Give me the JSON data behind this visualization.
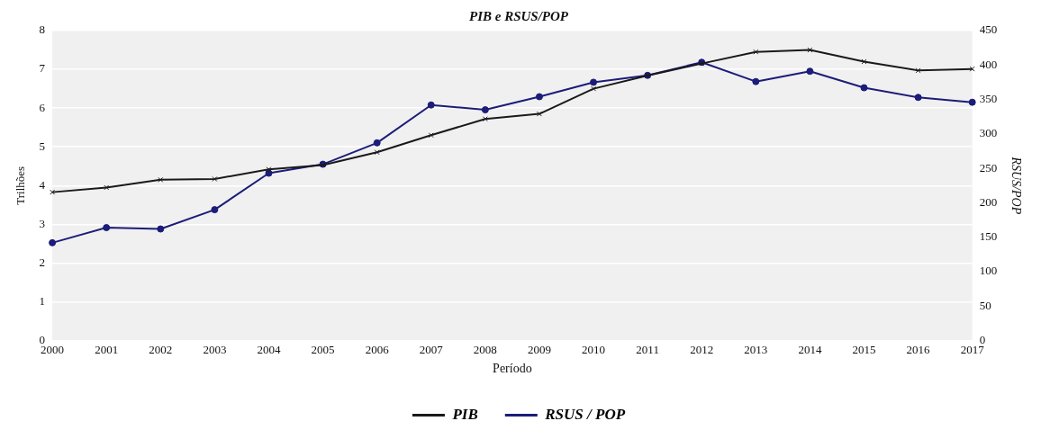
{
  "chart_data": {
    "type": "line",
    "title": "PIB e RSUS/POP",
    "xlabel": "Período",
    "ylabel": "Trilhões",
    "y2label": "RSUS/POP",
    "categories": [
      "2000",
      "2001",
      "2002",
      "2003",
      "2004",
      "2005",
      "2006",
      "2007",
      "2008",
      "2009",
      "2010",
      "2011",
      "2012",
      "2013",
      "2014",
      "2015",
      "2016",
      "2017"
    ],
    "series": [
      {
        "name": "PIB",
        "color": "#1a1a1a",
        "marker": "cross",
        "values": [
          3.83,
          3.95,
          4.15,
          4.17,
          4.42,
          4.53,
          4.86,
          5.3,
          5.72,
          5.85,
          6.5,
          6.84,
          7.15,
          7.45,
          7.5,
          7.2,
          6.97,
          7.01
        ]
      },
      {
        "name": "RSUS / POP",
        "color": "#1c1c7a",
        "marker": "circle",
        "axis": "y2",
        "values": [
          142,
          164,
          162,
          190,
          243,
          256,
          287,
          342,
          335,
          354,
          375,
          385,
          404,
          376,
          391,
          367,
          353,
          346
        ]
      }
    ],
    "ylim": [
      0,
      8
    ],
    "yticks": [
      0,
      1,
      2,
      3,
      4,
      5,
      6,
      7,
      8
    ],
    "y2lim": [
      0,
      450
    ],
    "y2ticks": [
      0,
      50,
      100,
      150,
      200,
      250,
      300,
      350,
      400,
      450
    ],
    "grid": "y",
    "legend": "bottom",
    "line_style": "solid"
  }
}
